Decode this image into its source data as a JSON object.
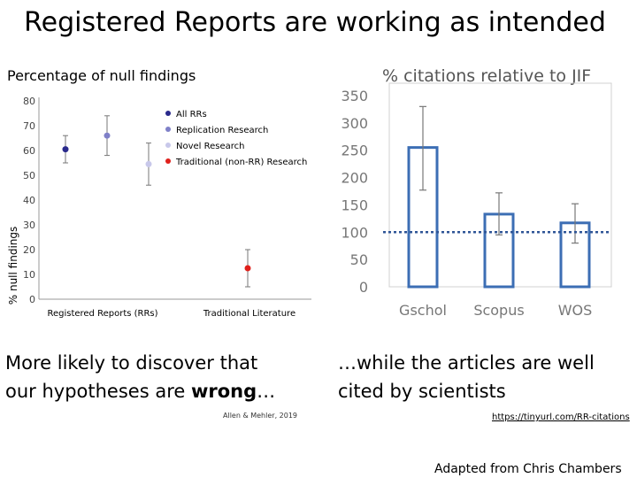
{
  "slide": {
    "title": "Registered Reports are working as intended",
    "caption_left_1": "More likely to discover that",
    "caption_left_2a": "our hypotheses are ",
    "caption_left_2b": "wrong",
    "caption_left_2c": "…",
    "caption_right_1": "…while the articles are well",
    "caption_right_2": "cited by scientists",
    "citation_left": "Allen & Mehler, 2019",
    "citation_right": "https://tinyurl.com/RR-citations",
    "credit": "Adapted from Chris Chambers"
  },
  "chart_data": [
    {
      "type": "scatter",
      "title": "Percentage of null findings",
      "xlabel": "",
      "ylabel": "% null findings",
      "categories": [
        "Registered Reports (RRs)",
        "Traditional Literature"
      ],
      "ylim": [
        0,
        80
      ],
      "yticks": [
        0,
        10,
        20,
        30,
        40,
        50,
        60,
        70,
        80
      ],
      "legend_position": "top-right",
      "grid": false,
      "series": [
        {
          "name": "All RRs",
          "color": "#2a2a8c",
          "category": 0,
          "slot": 0,
          "value": 60.5,
          "err_low": 55,
          "err_high": 66
        },
        {
          "name": "Replication Research",
          "color": "#7f80c8",
          "category": 0,
          "slot": 1,
          "value": 66,
          "err_low": 58,
          "err_high": 74
        },
        {
          "name": "Novel Research",
          "color": "#c8c8ea",
          "category": 0,
          "slot": 2,
          "value": 54.5,
          "err_low": 46,
          "err_high": 63
        },
        {
          "name": "Traditional (non-RR) Research",
          "color": "#e0201b",
          "category": 1,
          "slot": 1,
          "value": 12.5,
          "err_low": 5,
          "err_high": 20
        }
      ]
    },
    {
      "type": "bar",
      "title": "% citations relative to JIF",
      "xlabel": "",
      "ylabel": "",
      "categories": [
        "Gschol",
        "Scopus",
        "WOS"
      ],
      "values": [
        255,
        133,
        117
      ],
      "err_low": [
        177,
        95,
        80
      ],
      "err_high": [
        330,
        172,
        152
      ],
      "reference_line": 100,
      "ylim": [
        0,
        350
      ],
      "yticks": [
        0,
        50,
        100,
        150,
        200,
        250,
        300,
        350
      ],
      "grid": false,
      "color": "#3c6eb4"
    }
  ]
}
